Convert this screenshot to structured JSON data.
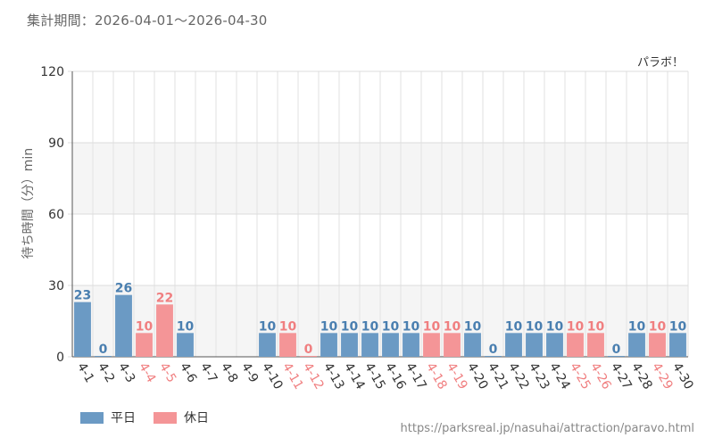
{
  "header": {
    "period_label": "集計期間：2026-04-01～2026-04-30"
  },
  "footer": {
    "url": "https://parksreal.jp/nasuhai/attraction/paravo.html"
  },
  "colors": {
    "weekday": "#6b9ac4",
    "holiday": "#f49597",
    "weekday_label": "#4a7fb0",
    "holiday_label": "#f07f80",
    "axis_text": "#333333"
  },
  "chart_data": {
    "type": "bar",
    "title": "パラボ！",
    "xlabel": "",
    "ylabel": "待ち時間（分）min",
    "ylim": [
      0,
      120
    ],
    "yticks": [
      0,
      30,
      60,
      90,
      120
    ],
    "grid": true,
    "legend_position": "bottom-left",
    "categories": [
      "4-1",
      "4-2",
      "4-3",
      "4-4",
      "4-5",
      "4-6",
      "4-7",
      "4-8",
      "4-9",
      "4-10",
      "4-11",
      "4-12",
      "4-13",
      "4-14",
      "4-15",
      "4-16",
      "4-17",
      "4-18",
      "4-19",
      "4-20",
      "4-21",
      "4-22",
      "4-23",
      "4-24",
      "4-25",
      "4-26",
      "4-27",
      "4-28",
      "4-29",
      "4-30"
    ],
    "values": [
      23,
      0,
      26,
      10,
      22,
      10,
      null,
      null,
      null,
      10,
      10,
      0,
      10,
      10,
      10,
      10,
      10,
      10,
      10,
      10,
      0,
      10,
      10,
      10,
      10,
      10,
      0,
      10,
      10,
      10
    ],
    "day_type": [
      "weekday",
      "weekday",
      "weekday",
      "holiday",
      "holiday",
      "weekday",
      "weekday",
      "weekday",
      "weekday",
      "weekday",
      "holiday",
      "holiday",
      "weekday",
      "weekday",
      "weekday",
      "weekday",
      "weekday",
      "holiday",
      "holiday",
      "weekday",
      "weekday",
      "weekday",
      "weekday",
      "weekday",
      "holiday",
      "holiday",
      "weekday",
      "weekday",
      "holiday",
      "weekday"
    ],
    "series": [
      {
        "name": "平日",
        "key": "weekday"
      },
      {
        "name": "休日",
        "key": "holiday"
      }
    ]
  }
}
